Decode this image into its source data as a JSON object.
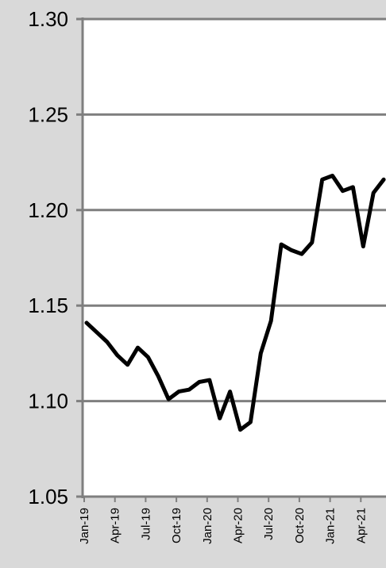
{
  "chart_data": {
    "type": "line",
    "title": "",
    "xlabel": "",
    "ylabel": "",
    "ylim": [
      1.05,
      1.3
    ],
    "yticks": [
      "1.30",
      "1.25",
      "1.20",
      "1.15",
      "1.10",
      "1.05"
    ],
    "xtick_labels": [
      "Jan-19",
      "Apr-19",
      "Jul-19",
      "Oct-19",
      "Jan-20",
      "Apr-20",
      "Jul-20",
      "Oct-20",
      "Jan-21",
      "Apr-21"
    ],
    "grid": "horizontal",
    "legend": "none",
    "series": [
      {
        "color": "#000000",
        "x": [
          "Jan-19",
          "Feb-19",
          "Mar-19",
          "Apr-19",
          "May-19",
          "Jun-19",
          "Jul-19",
          "Aug-19",
          "Sep-19",
          "Oct-19",
          "Nov-19",
          "Dec-19",
          "Jan-20",
          "Feb-20",
          "Mar-20",
          "Apr-20",
          "May-20",
          "Jun-20",
          "Jul-20",
          "Aug-20",
          "Sep-20",
          "Oct-20",
          "Nov-20",
          "Dec-20",
          "Jan-21",
          "Feb-21",
          "Mar-21",
          "Apr-21",
          "May-21",
          "Jun-21"
        ],
        "values": [
          1.141,
          1.136,
          1.131,
          1.124,
          1.119,
          1.128,
          1.123,
          1.113,
          1.101,
          1.105,
          1.106,
          1.11,
          1.111,
          1.091,
          1.105,
          1.085,
          1.089,
          1.125,
          1.142,
          1.182,
          1.179,
          1.177,
          1.183,
          1.216,
          1.218,
          1.21,
          1.212,
          1.181,
          1.209,
          1.216
        ]
      }
    ]
  }
}
